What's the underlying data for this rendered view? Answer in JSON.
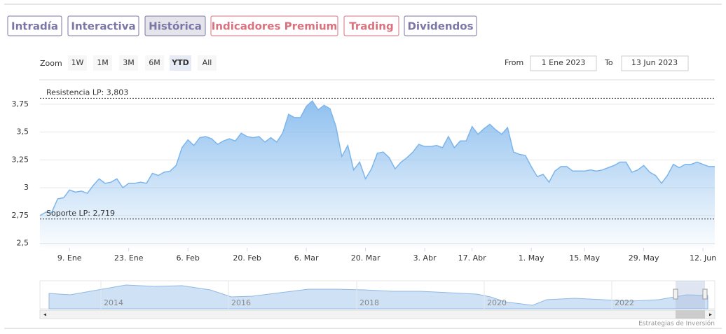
{
  "tabs": [
    "Intradía",
    "Interactiva",
    "Histórica",
    "Indicadores Premium",
    "Trading",
    "Dividendos"
  ],
  "zoom": {
    "label": "Zoom",
    "buttons": [
      "1W",
      "1M",
      "3M",
      "6M",
      "YTD",
      "All"
    ]
  },
  "range": {
    "from_label": "From",
    "from": "1 Ene 2023",
    "to_label": "To",
    "to": "13 Jun 2023"
  },
  "chart_data": {
    "type": "area",
    "categories": [
      null,
      null,
      null,
      null,
      null,
      "9. Ene",
      null,
      null,
      null,
      null,
      null,
      null,
      null,
      null,
      null,
      "23. Ene",
      null,
      null,
      null,
      null,
      null,
      null,
      null,
      null,
      null,
      "6. Feb",
      null,
      null,
      null,
      null,
      null,
      null,
      null,
      null,
      null,
      "20. Feb",
      null,
      null,
      null,
      null,
      null,
      null,
      null,
      null,
      null,
      "6. Mar",
      null,
      null,
      null,
      null,
      null,
      null,
      null,
      null,
      null,
      "20. Mar",
      null,
      null,
      null,
      null,
      null,
      null,
      null,
      null,
      null,
      "3. Abr",
      null,
      null,
      null,
      null,
      null,
      null,
      null,
      "17. Abr",
      null,
      null,
      null,
      null,
      null,
      null,
      null,
      null,
      null,
      "1. May",
      null,
      null,
      null,
      null,
      null,
      null,
      null,
      null,
      "15. May",
      null,
      null,
      null,
      null,
      null,
      null,
      null,
      null,
      null,
      "29. May",
      null,
      null,
      null,
      null,
      null,
      null,
      null,
      null,
      null,
      "12. Jun",
      null,
      null
    ],
    "values": [
      2.75,
      2.78,
      2.78,
      2.9,
      2.91,
      2.98,
      2.96,
      2.97,
      2.95,
      3.02,
      3.08,
      3.04,
      3.05,
      3.08,
      3.0,
      3.04,
      3.04,
      3.05,
      3.04,
      3.13,
      3.11,
      3.14,
      3.15,
      3.2,
      3.36,
      3.43,
      3.38,
      3.45,
      3.46,
      3.44,
      3.39,
      3.42,
      3.44,
      3.42,
      3.49,
      3.46,
      3.45,
      3.46,
      3.41,
      3.45,
      3.41,
      3.49,
      3.66,
      3.63,
      3.63,
      3.73,
      3.78,
      3.7,
      3.74,
      3.71,
      3.55,
      3.28,
      3.38,
      3.16,
      3.23,
      3.08,
      3.17,
      3.31,
      3.32,
      3.27,
      3.17,
      3.23,
      3.27,
      3.32,
      3.39,
      3.37,
      3.37,
      3.38,
      3.36,
      3.46,
      3.36,
      3.42,
      3.42,
      3.55,
      3.48,
      3.53,
      3.57,
      3.52,
      3.48,
      3.54,
      3.32,
      3.3,
      3.29,
      3.19,
      3.1,
      3.12,
      3.05,
      3.15,
      3.19,
      3.19,
      3.15,
      3.15,
      3.15,
      3.16,
      3.15,
      3.16,
      3.18,
      3.2,
      3.23,
      3.23,
      3.14,
      3.16,
      3.2,
      3.14,
      3.11,
      3.04,
      3.11,
      3.21,
      3.18,
      3.21,
      3.21,
      3.23,
      3.21,
      3.19,
      3.19
    ],
    "color": "#7cb5ec",
    "ylim": [
      2.46,
      3.9
    ],
    "yticks": [
      {
        "value": 2.5,
        "label": "2,5"
      },
      {
        "value": 2.75,
        "label": "2,75"
      },
      3,
      {
        "value": 3.25,
        "label": "3,25"
      },
      {
        "value": 3.5,
        "label": "3,5"
      },
      {
        "value": 3.75,
        "label": "3,75"
      }
    ],
    "grid": true,
    "plot_lines": [
      {
        "value": 3.803,
        "label": "Resistencia LP: 3,803"
      },
      {
        "value": 2.719,
        "label": "Soporte LP: 2,719"
      }
    ]
  },
  "navigator": {
    "labels": [
      "2014",
      "2016",
      "2018",
      "2020",
      "2022"
    ]
  },
  "credits": "Estrategias de Inversión"
}
